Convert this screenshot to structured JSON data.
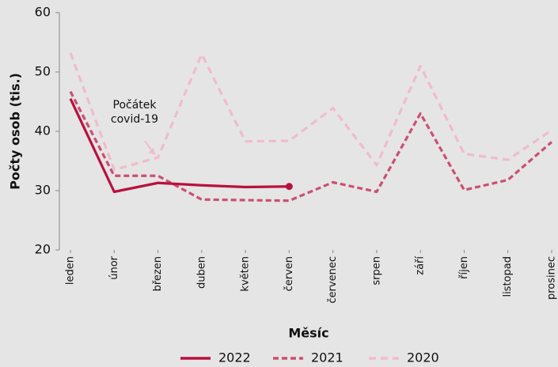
{
  "chart_data": {
    "type": "line",
    "xlabel": "Měsíc",
    "ylabel": "Počty osob (tis.)",
    "categories": [
      "leden",
      "únor",
      "březen",
      "duben",
      "květen",
      "červen",
      "červenec",
      "srpen",
      "září",
      "říjen",
      "listopad",
      "prosinec"
    ],
    "series": [
      {
        "name": "2022",
        "color": "#b8113e",
        "values": [
          45.5,
          29.8,
          31.3,
          30.9,
          30.6,
          30.7,
          null,
          null,
          null,
          null,
          null,
          null
        ]
      },
      {
        "name": "2021",
        "color": "#cc4f72",
        "values": [
          46.7,
          32.5,
          32.5,
          28.5,
          28.4,
          28.3,
          31.4,
          29.8,
          43,
          30.1,
          31.8,
          38.2
        ]
      },
      {
        "name": "2020",
        "color": "#f0bccb",
        "values": [
          53.2,
          33.5,
          35.6,
          53,
          38.3,
          38.4,
          43.9,
          34.3,
          51,
          36.2,
          35.2,
          40.2
        ]
      }
    ],
    "ylim": [
      20,
      60
    ],
    "yticks": [
      20,
      30,
      40,
      50,
      60
    ],
    "annotation_lines": [
      "Počátek",
      "covid-19"
    ],
    "legend": "bottom"
  }
}
